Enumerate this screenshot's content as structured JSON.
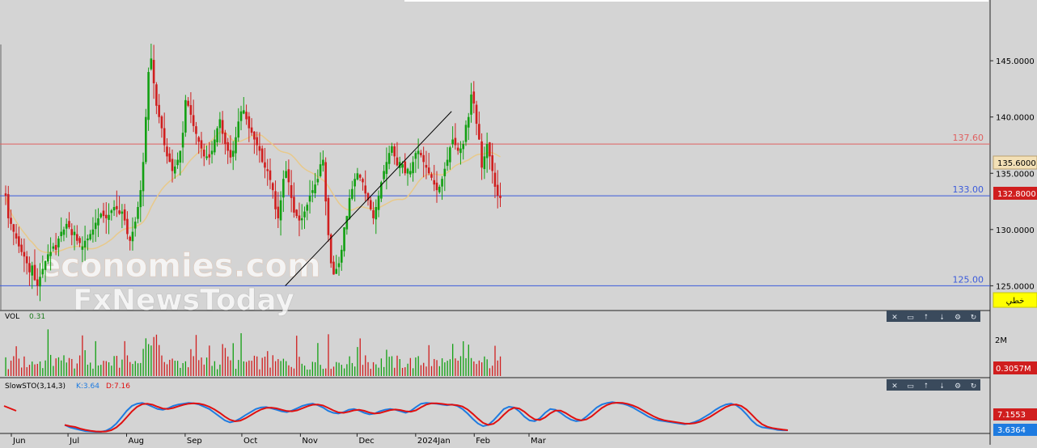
{
  "watermark": {
    "line1": "economies.com",
    "line2": "FxNewsToday"
  },
  "colors": {
    "up": "#12a012",
    "down": "#d01e1e",
    "ma": "#e8c98a",
    "resistance": "#e06060",
    "support": "#3b5bdb",
    "k_line": "#1e7be0",
    "d_line": "#e01010"
  },
  "chart_data": {
    "type": "candlestick",
    "title": "",
    "x_tick_labels": [
      "Jun",
      "Jul",
      "Aug",
      "Sep",
      "Oct",
      "Nov",
      "Dec",
      "2024Jan",
      "Feb",
      "Mar"
    ],
    "price_axis": {
      "range": [
        122.8,
        150.4
      ],
      "ticks": [
        "145.0000",
        "140.0000",
        "135.0000",
        "130.0000",
        "125.0000"
      ]
    },
    "levels": [
      {
        "value": 137.6,
        "label": "137.60",
        "kind": "resistance"
      },
      {
        "value": 133.0,
        "label": "133.00",
        "kind": "support"
      },
      {
        "value": 125.0,
        "label": "125.00",
        "kind": "support"
      }
    ],
    "trendline": {
      "from": {
        "date": "2023-10-24",
        "price": 125.0
      },
      "to": {
        "date": "2024-01-20",
        "price": 140.5
      }
    },
    "last_price_tag": "132.8000",
    "ma_tag": "135.6000",
    "drawing_tool_label": "خطي",
    "closes": [
      133.0,
      131.0,
      130.5,
      129.8,
      129.2,
      128.5,
      128.0,
      127.6,
      127.0,
      126.2,
      126.8,
      125.5,
      125.0,
      125.8,
      126.5,
      127.2,
      127.8,
      128.0,
      128.5,
      128.2,
      129.2,
      129.8,
      130.0,
      130.5,
      130.2,
      129.5,
      129.8,
      129.0,
      128.8,
      128.5,
      129.0,
      129.2,
      129.6,
      130.0,
      130.6,
      131.0,
      131.4,
      131.2,
      131.0,
      131.3,
      131.7,
      132.0,
      131.8,
      131.4,
      131.6,
      130.8,
      129.6,
      129.0,
      129.8,
      130.7,
      132.0,
      133.5,
      136.0,
      140.0,
      144.0,
      145.2,
      143.0,
      141.0,
      140.0,
      139.0,
      137.5,
      136.5,
      136.0,
      135.2,
      135.6,
      136.2,
      137.0,
      138.6,
      141.5,
      141.0,
      140.2,
      139.2,
      138.5,
      137.8,
      137.2,
      136.5,
      136.5,
      136.4,
      137.0,
      138.0,
      139.0,
      139.8,
      138.5,
      137.6,
      137.0,
      136.4,
      137.0,
      138.2,
      139.6,
      140.5,
      140.6,
      139.8,
      139.0,
      138.6,
      138.0,
      137.5,
      137.0,
      136.0,
      135.5,
      135.2,
      134.4,
      133.5,
      131.8,
      131.0,
      132.6,
      134.5,
      135.2,
      134.2,
      132.8,
      131.5,
      131.2,
      130.8,
      131.0,
      131.6,
      132.2,
      133.0,
      133.5,
      134.0,
      134.5,
      135.8,
      136.2,
      132.5,
      129.5,
      127.0,
      126.0,
      126.5,
      127.0,
      128.2,
      130.2,
      131.2,
      132.8,
      133.6,
      134.5,
      135.0,
      134.6,
      134.2,
      133.2,
      132.6,
      131.8,
      131.0,
      132.0,
      133.0,
      134.2,
      135.2,
      136.0,
      136.8,
      137.4,
      136.5,
      135.7,
      136.0,
      135.8,
      135.0,
      135.4,
      135.2,
      136.0,
      136.8,
      137.0,
      136.6,
      136.0,
      135.5,
      135.0,
      134.6,
      134.0,
      133.5,
      133.8,
      134.5,
      135.4,
      136.2,
      137.3,
      138.0,
      137.5,
      137.0,
      137.2,
      137.6,
      139.3,
      140.0,
      142.0,
      141.2,
      139.4,
      138.0,
      135.5,
      136.5,
      137.6,
      136.5,
      135.2,
      133.8,
      133.0,
      132.8
    ],
    "volume_axis": {
      "tick": "2M",
      "last_tag": "0.3057M",
      "label": "VOL",
      "value": "0.31"
    },
    "stochastic": {
      "label": "SlowSTO(3,14,3)",
      "k_label": "K:3.64",
      "d_label": "D:7.16",
      "k_tag": "3.6364",
      "d_tag": "7.1553",
      "k": [
        18,
        12,
        8,
        5,
        2,
        1,
        0,
        0,
        3,
        10,
        22,
        38,
        55,
        68,
        74,
        76,
        72,
        66,
        60,
        58,
        62,
        68,
        72,
        74,
        76,
        75,
        72,
        66,
        60,
        50,
        40,
        30,
        25,
        28,
        35,
        44,
        52,
        60,
        64,
        65,
        62,
        58,
        54,
        52,
        56,
        62,
        68,
        72,
        74,
        70,
        64,
        55,
        50,
        48,
        52,
        58,
        60,
        56,
        50,
        46,
        48,
        54,
        58,
        60,
        58,
        54,
        50,
        55,
        65,
        74,
        76,
        75,
        74,
        72,
        70,
        72,
        68,
        60,
        48,
        34,
        22,
        15,
        18,
        30,
        45,
        60,
        66,
        64,
        54,
        40,
        30,
        28,
        36,
        50,
        60,
        58,
        50,
        40,
        32,
        28,
        30,
        40,
        52,
        64,
        72,
        76,
        78,
        76,
        74,
        70,
        64,
        56,
        48,
        40,
        34,
        30,
        28,
        26,
        24,
        22,
        20,
        22,
        26,
        32,
        40,
        48,
        58,
        66,
        72,
        74,
        70,
        60,
        46,
        30,
        18,
        12,
        10,
        8,
        5,
        4,
        4
      ]
    }
  },
  "toolbar_icons": [
    "close-icon",
    "restore-icon",
    "up-icon",
    "down-icon",
    "settings-icon",
    "refresh-icon"
  ]
}
